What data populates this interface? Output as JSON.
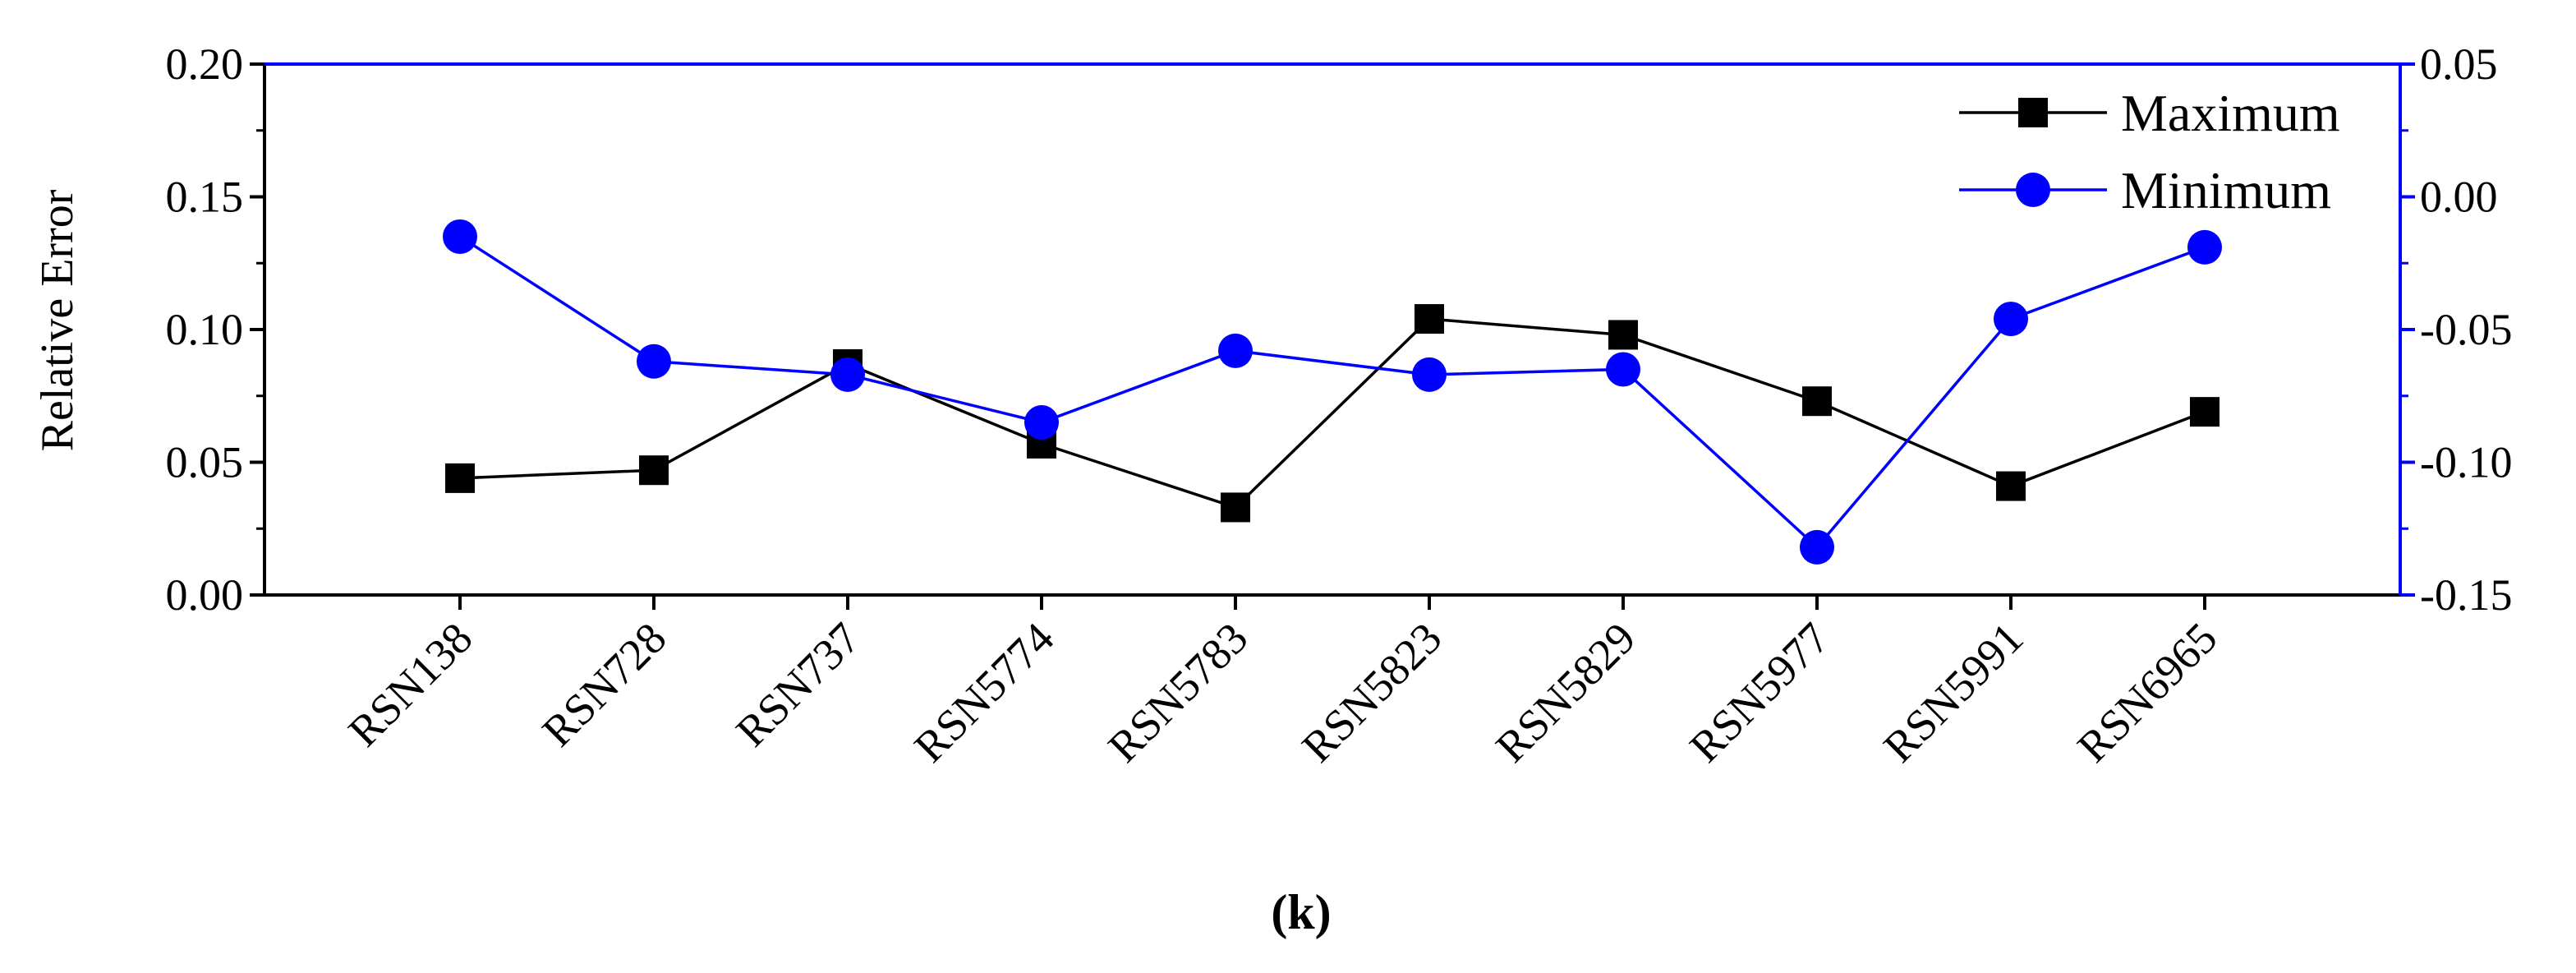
{
  "chart_data": {
    "type": "line",
    "panel_label": "(k)",
    "title": "",
    "xlabel": "",
    "ylabel": "Relative Error",
    "categories": [
      "RSN138",
      "RSN728",
      "RSN737",
      "RSN5774",
      "RSN5783",
      "RSN5823",
      "RSN5829",
      "RSN5977",
      "RSN5991",
      "RSN6965"
    ],
    "ylim": [
      0.0,
      0.2
    ],
    "y_ticks": [
      "0.00",
      "0.05",
      "0.10",
      "0.15",
      "0.20"
    ],
    "y2lim": [
      -0.15,
      0.05
    ],
    "y2_ticks": [
      "-0.15",
      "-0.10",
      "-0.05",
      "0.00",
      "0.05"
    ],
    "grid": false,
    "legend_position": "top-right",
    "series": [
      {
        "name": "Maximum",
        "axis": "left",
        "color": "#000000",
        "marker": "square",
        "values": [
          0.044,
          0.047,
          0.087,
          0.057,
          0.033,
          0.104,
          0.098,
          0.073,
          0.041,
          0.069
        ]
      },
      {
        "name": "Minimum",
        "axis": "right",
        "color": "#0000ff",
        "marker": "circle",
        "values": [
          -0.015,
          -0.062,
          -0.067,
          -0.085,
          -0.058,
          -0.067,
          -0.065,
          -0.132,
          -0.046,
          -0.019
        ]
      }
    ]
  }
}
